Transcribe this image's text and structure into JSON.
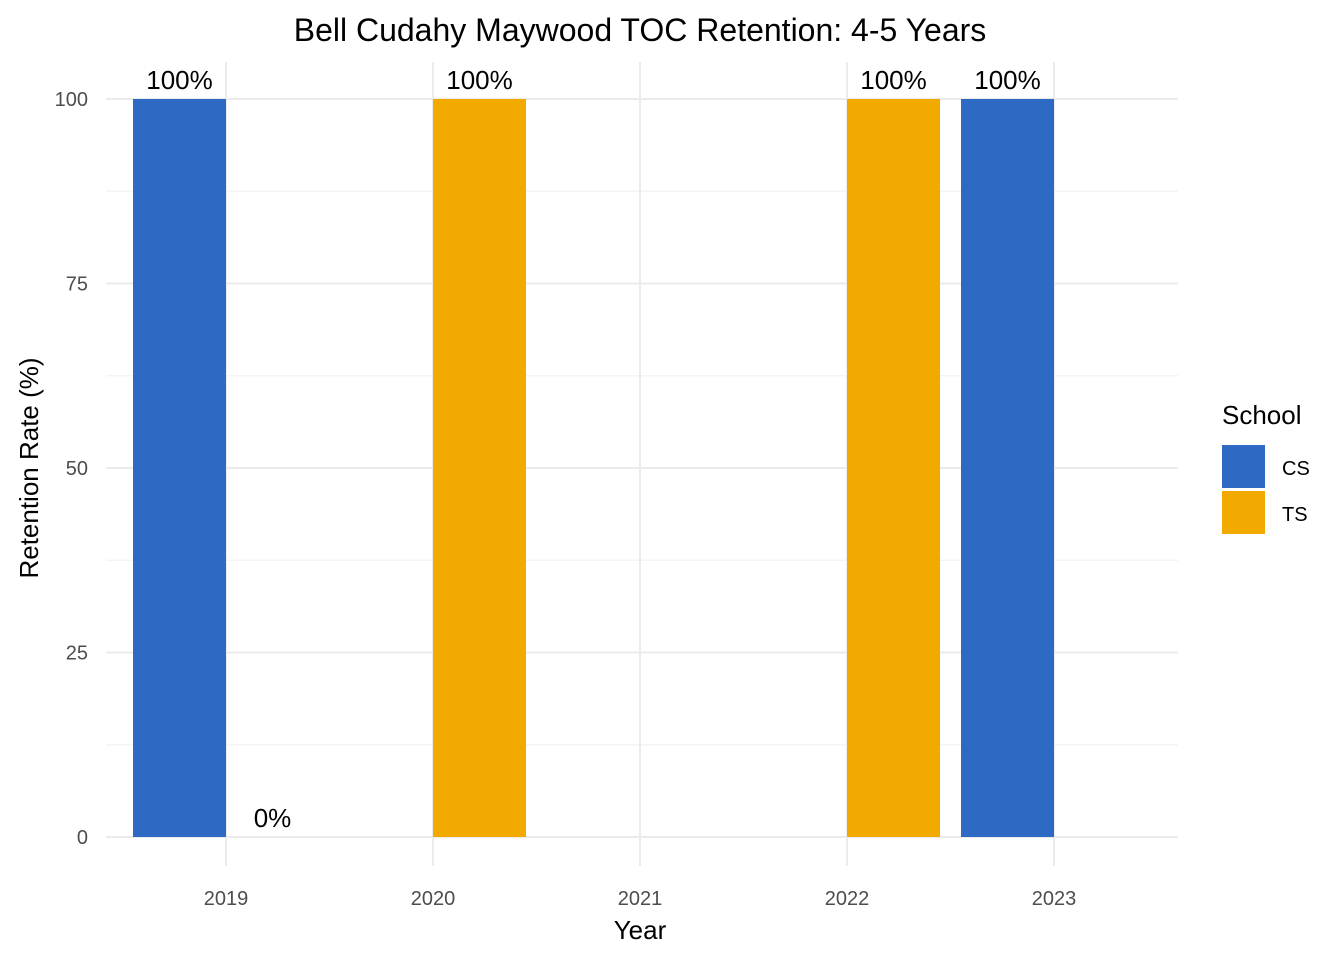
{
  "chart_data": {
    "type": "bar",
    "title": "Bell Cudahy Maywood TOC Retention: 4-5 Years",
    "xlabel": "Year",
    "ylabel": "Retention Rate (%)",
    "categories": [
      "2019",
      "2020",
      "2021",
      "2022",
      "2023"
    ],
    "ylim": [
      0,
      100
    ],
    "y_ticks": [
      0,
      25,
      50,
      75,
      100
    ],
    "grid": true,
    "legend": {
      "title": "School",
      "position": "right"
    },
    "series": [
      {
        "name": "CS",
        "color": "#2E69C4",
        "values": [
          100,
          null,
          null,
          null,
          100
        ]
      },
      {
        "name": "TS",
        "color": "#F2A900",
        "values": [
          0,
          100,
          null,
          100,
          null
        ]
      }
    ],
    "data_labels": [
      {
        "category": "2019",
        "series": "CS",
        "value": 100,
        "text": "100%"
      },
      {
        "category": "2019",
        "series": "TS",
        "value": 0,
        "text": "0%"
      },
      {
        "category": "2020",
        "series": "TS",
        "value": 100,
        "text": "100%"
      },
      {
        "category": "2022",
        "series": "TS",
        "value": 100,
        "text": "100%"
      },
      {
        "category": "2023",
        "series": "CS",
        "value": 100,
        "text": "100%"
      }
    ]
  }
}
